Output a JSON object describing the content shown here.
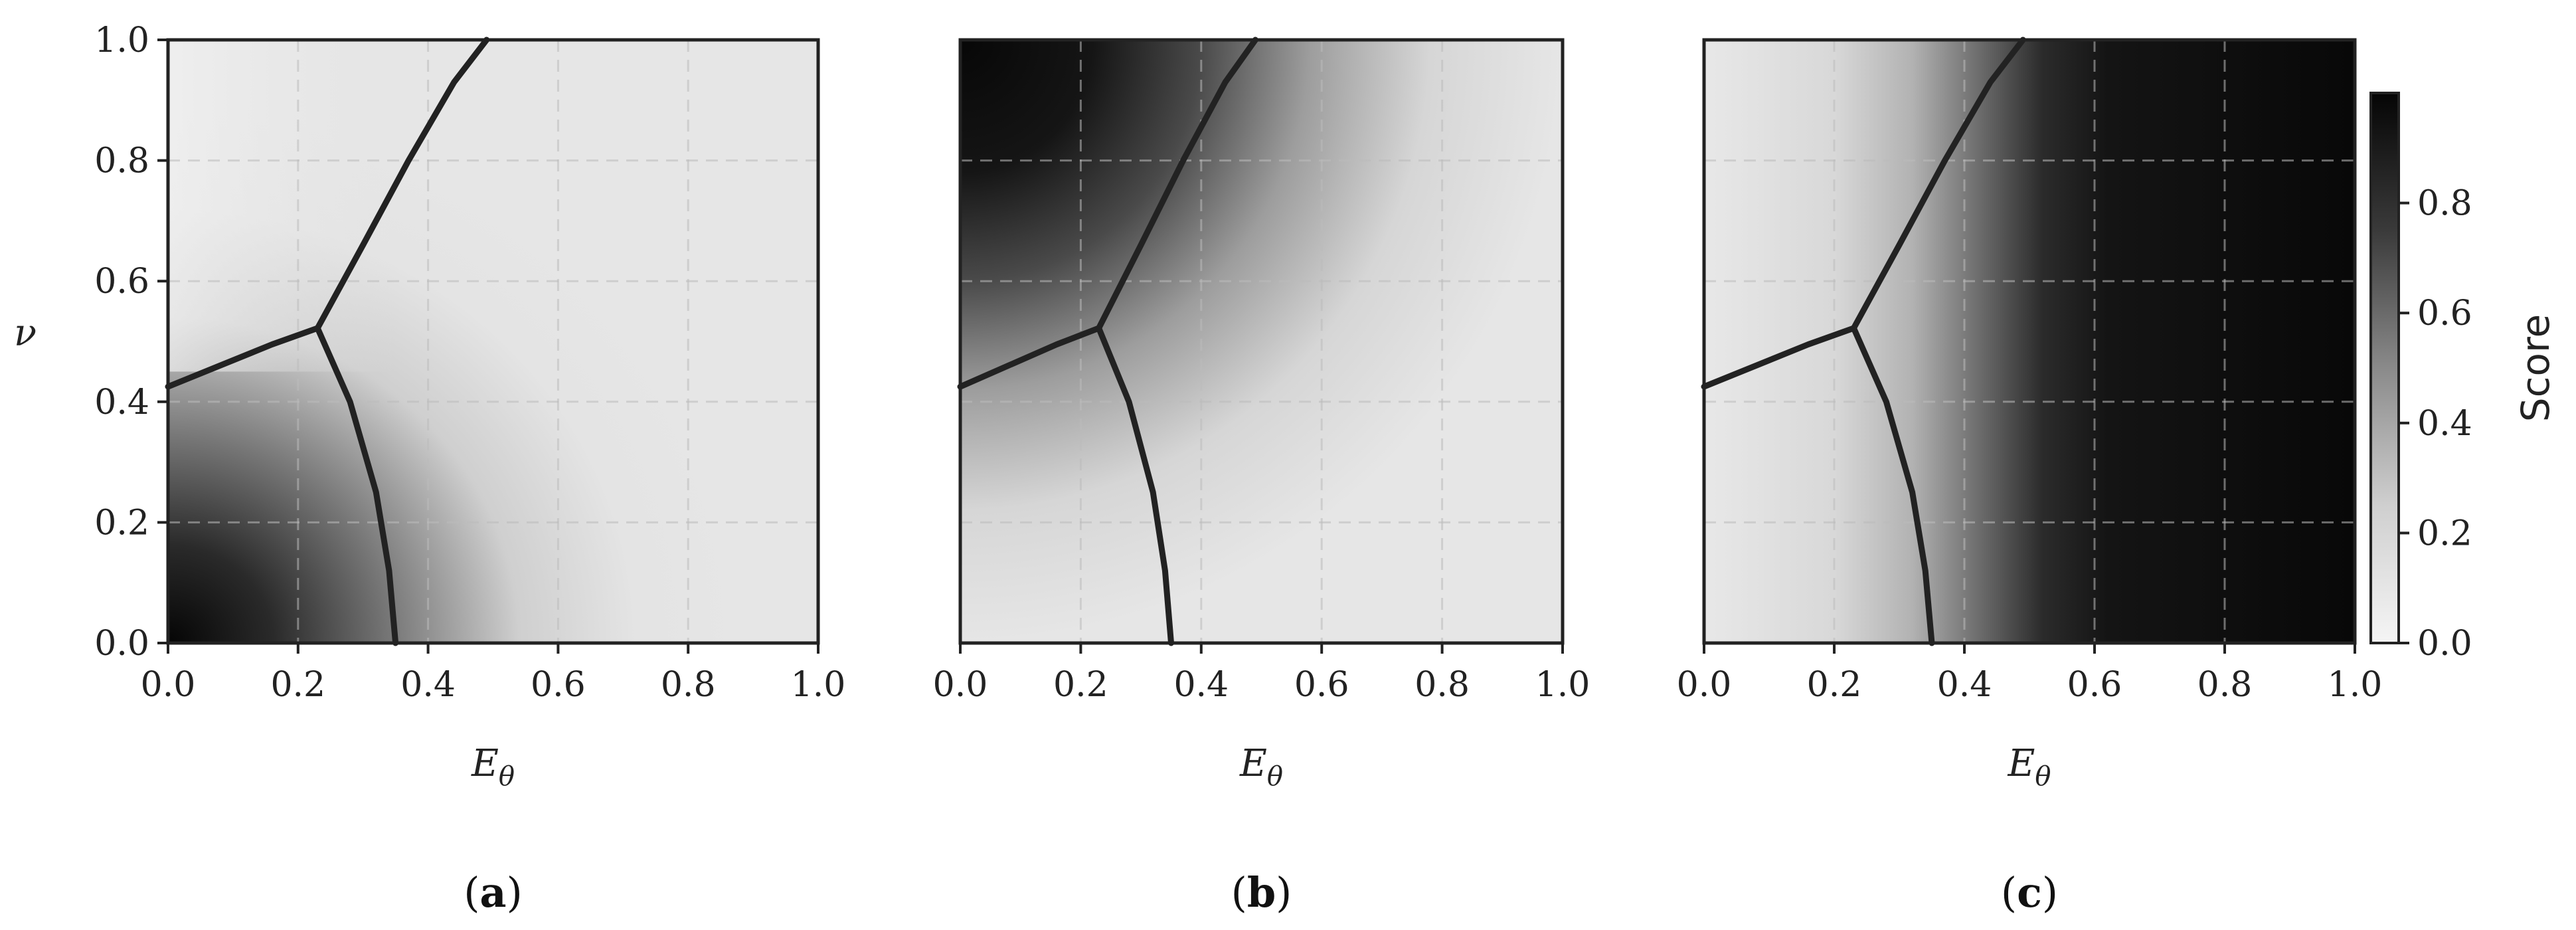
{
  "chart_data": [
    {
      "type": "heatmap",
      "panel": "(a)",
      "panel_letter": "a",
      "xlabel": "E_θ",
      "ylabel": "ν",
      "xlim": [
        0,
        1
      ],
      "ylim": [
        0,
        1
      ],
      "x_ticks": [
        "0.0",
        "0.2",
        "0.4",
        "0.6",
        "0.8",
        "1.0"
      ],
      "y_ticks": [
        "0.0",
        "0.2",
        "0.4",
        "0.6",
        "0.8",
        "1.0"
      ],
      "grid": true,
      "score_pattern": "high near origin (low E_θ, low ν), near zero elsewhere",
      "boundary_curves": [
        {
          "x": [
            0.0,
            0.08,
            0.16,
            0.23
          ],
          "y": [
            0.425,
            0.46,
            0.495,
            0.522
          ]
        },
        {
          "x": [
            0.23,
            0.3,
            0.37,
            0.44,
            0.49
          ],
          "y": [
            0.522,
            0.66,
            0.8,
            0.93,
            1.0
          ]
        },
        {
          "x": [
            0.23,
            0.28,
            0.32,
            0.34,
            0.35
          ],
          "y": [
            0.522,
            0.4,
            0.25,
            0.12,
            0.0
          ]
        }
      ]
    },
    {
      "type": "heatmap",
      "panel": "(b)",
      "panel_letter": "b",
      "xlabel": "E_θ",
      "xlim": [
        0,
        1
      ],
      "ylim": [
        0,
        1
      ],
      "x_ticks": [
        "0.0",
        "0.2",
        "0.4",
        "0.6",
        "0.8",
        "1.0"
      ],
      "grid": true,
      "score_pattern": "high in upper-left (low E_θ, high ν), near zero elsewhere",
      "boundary_curves": [
        {
          "x": [
            0.0,
            0.08,
            0.16,
            0.23
          ],
          "y": [
            0.425,
            0.46,
            0.495,
            0.522
          ]
        },
        {
          "x": [
            0.23,
            0.3,
            0.37,
            0.44,
            0.49
          ],
          "y": [
            0.522,
            0.66,
            0.8,
            0.93,
            1.0
          ]
        },
        {
          "x": [
            0.23,
            0.28,
            0.32,
            0.34,
            0.35
          ],
          "y": [
            0.522,
            0.4,
            0.25,
            0.12,
            0.0
          ]
        }
      ]
    },
    {
      "type": "heatmap",
      "panel": "(c)",
      "panel_letter": "c",
      "xlabel": "E_θ",
      "xlim": [
        0,
        1
      ],
      "ylim": [
        0,
        1
      ],
      "x_ticks": [
        "0.0",
        "0.2",
        "0.4",
        "0.6",
        "0.8",
        "1.0"
      ],
      "grid": true,
      "score_pattern": "increases with E_θ: ~0 below 0.3, ~1 above 0.55",
      "boundary_curves": [
        {
          "x": [
            0.0,
            0.08,
            0.16,
            0.23
          ],
          "y": [
            0.425,
            0.46,
            0.495,
            0.522
          ]
        },
        {
          "x": [
            0.23,
            0.3,
            0.37,
            0.44,
            0.49
          ],
          "y": [
            0.522,
            0.66,
            0.8,
            0.93,
            1.0
          ]
        },
        {
          "x": [
            0.23,
            0.28,
            0.32,
            0.34,
            0.35
          ],
          "y": [
            0.522,
            0.4,
            0.25,
            0.12,
            0.0
          ]
        }
      ]
    }
  ],
  "colorbar": {
    "label": "Score",
    "range": [
      0,
      1
    ],
    "ticks": [
      "0.0",
      "0.2",
      "0.4",
      "0.6",
      "0.8"
    ],
    "tick_values": [
      0,
      0.2,
      0.4,
      0.6,
      0.8
    ],
    "colormap": "white-to-black (Greys)"
  },
  "colors": {
    "low": "#e6e6e6",
    "high": "#0a0a0a",
    "boundary": "#222222",
    "grid": "#bcbcbc"
  }
}
